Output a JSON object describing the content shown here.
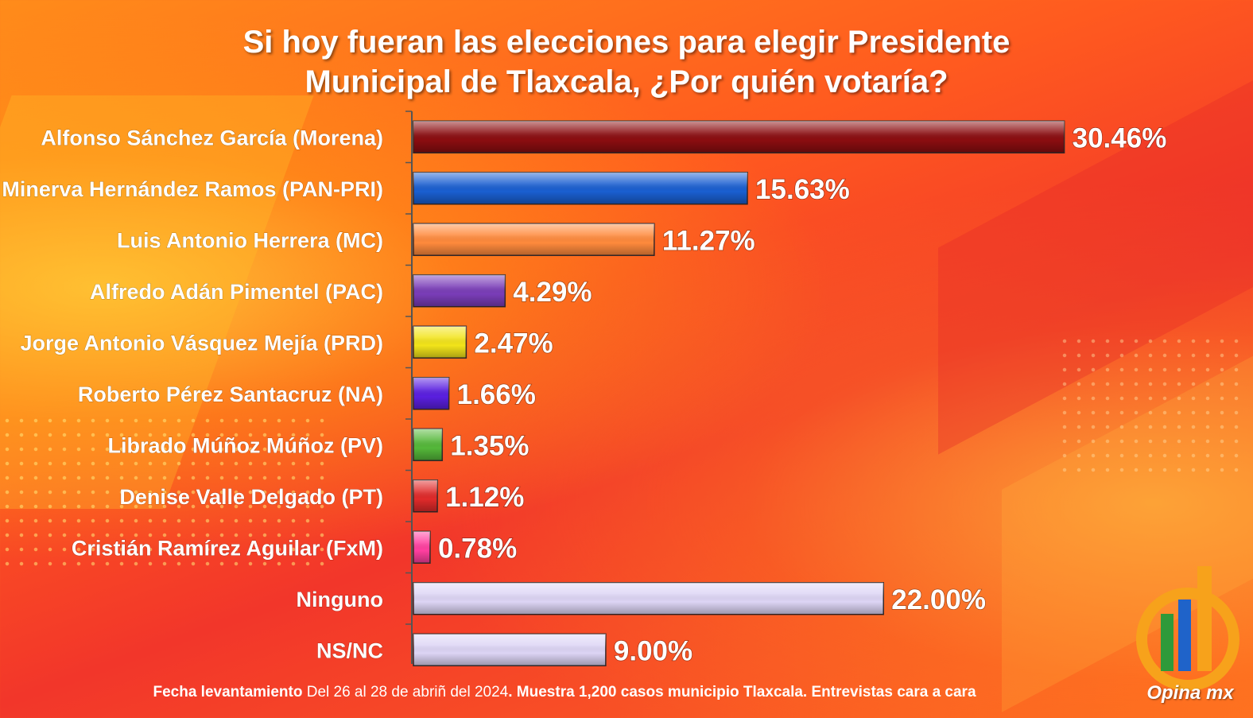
{
  "title_line1": "Si hoy fueran las elecciones para elegir Presidente",
  "title_line2": "Municipal de Tlaxcala, ¿Por quién votaría?",
  "footer": {
    "label1": "Fecha levantamiento",
    "text1": " Del 26 al  28 de abriñ del 2024",
    "label2": ". Muestra 1,200 casos municipio Tlaxcala. Entrevistas cara a cara"
  },
  "logo_text": "Opina mx",
  "chart_data": {
    "type": "bar",
    "orientation": "horizontal",
    "title": "Si hoy fueran las elecciones para elegir Presidente Municipal de Tlaxcala, ¿Por quién votaría?",
    "categories": [
      "Alfonso Sánchez García (Morena)",
      "Minerva Hernández Ramos (PAN-PRI)",
      "Luis Antonio Herrera (MC)",
      "Alfredo Adán Pimentel (PAC)",
      "Jorge Antonio Vásquez Mejía (PRD)",
      "Roberto Pérez Santacruz (NA)",
      "Librado Múñoz Múñoz (PV)",
      "Denise Valle Delgado (PT)",
      "Cristián Ramírez Aguilar (FxM)",
      "Ninguno",
      "NS/NC"
    ],
    "values": [
      30.46,
      15.63,
      11.27,
      4.29,
      2.47,
      1.66,
      1.35,
      1.12,
      0.78,
      22.0,
      9.0
    ],
    "value_labels": [
      "30.46%",
      "15.63%",
      "11.27%",
      "4.29%",
      "2.47%",
      "1.66%",
      "1.35%",
      "1.12%",
      "0.78%",
      "22.00%",
      "9.00%"
    ],
    "colors": [
      "#8b0d10",
      "#1a5fd1",
      "#ff8a3c",
      "#7a3db8",
      "#f2e41a",
      "#5a1fe0",
      "#55b83a",
      "#e02a2a",
      "#ff3fa0",
      "#ddd5f5",
      "#ddd5f5"
    ],
    "xlim": [
      0,
      32
    ]
  }
}
